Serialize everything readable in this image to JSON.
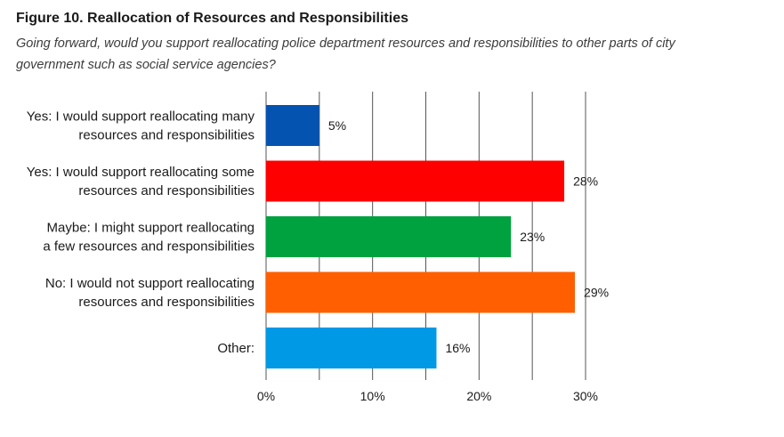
{
  "chart_data": {
    "type": "bar",
    "orientation": "horizontal",
    "title": "Figure 10. Reallocation of Resources and Responsibilities",
    "subtitle": "Going forward, would you support reallocating police department resources and responsibilities to other parts of city government such as social service agencies?",
    "categories": [
      [
        "Yes: I would support reallocating many",
        "resources and responsibilities"
      ],
      [
        "Yes: I would support reallocating some",
        "resources and responsibilities"
      ],
      [
        "Maybe: I might support reallocating",
        "a few resources and responsibilities"
      ],
      [
        "No: I would not support reallocating",
        "resources and responsibilities"
      ],
      [
        "Other:"
      ]
    ],
    "values": [
      5,
      28,
      23,
      29,
      16
    ],
    "data_labels": [
      "5%",
      "28%",
      "23%",
      "29%",
      "16%"
    ],
    "colors": [
      "#0553B1",
      "#FF0000",
      "#00A13F",
      "#FF5F00",
      "#0099E6"
    ],
    "xlim": [
      0,
      30
    ],
    "xticks": [
      0,
      10,
      20,
      30
    ],
    "xtick_labels": [
      "0%",
      "10%",
      "20%",
      "30%"
    ],
    "grid": true
  }
}
